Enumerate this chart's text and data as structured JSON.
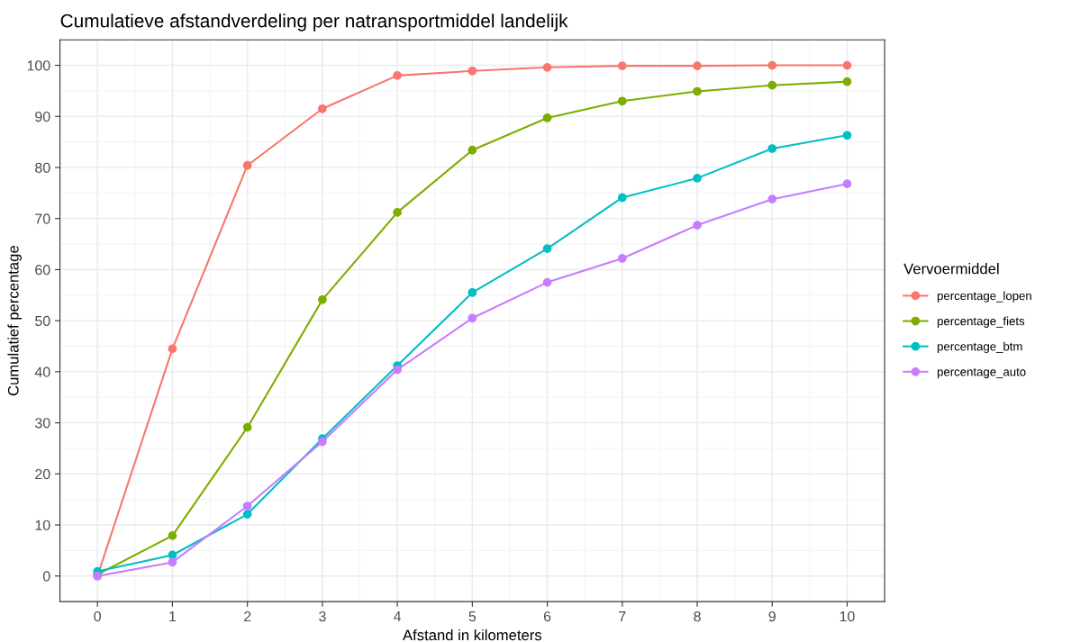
{
  "chart_data": {
    "type": "line",
    "title": "Cumulatieve afstandverdeling per natransportmiddel landelijk",
    "xlabel": "Afstand in kilometers",
    "ylabel": "Cumulatief percentage",
    "legend_title": "Vervoermiddel",
    "x": [
      0,
      1,
      2,
      3,
      4,
      5,
      6,
      7,
      8,
      9,
      10
    ],
    "series": [
      {
        "name": "percentage_lopen",
        "color": "#f8766d",
        "values": [
          0,
          44.5,
          80.4,
          91.5,
          98,
          98.9,
          99.6,
          99.9,
          99.9,
          100,
          100
        ]
      },
      {
        "name": "percentage_fiets",
        "color": "#7cae00",
        "values": [
          0.3,
          7.9,
          29.1,
          54.1,
          71.2,
          83.4,
          89.7,
          93,
          94.9,
          96.1,
          96.8
        ]
      },
      {
        "name": "percentage_btm",
        "color": "#00bfc4",
        "values": [
          0.9,
          4.1,
          12.1,
          26.9,
          41.2,
          55.5,
          64.1,
          74.1,
          77.9,
          83.7,
          86.3
        ]
      },
      {
        "name": "percentage_auto",
        "color": "#c77cff",
        "values": [
          0,
          2.7,
          13.7,
          26.3,
          40.4,
          50.5,
          57.5,
          62.2,
          68.7,
          73.8,
          76.8
        ]
      }
    ],
    "xlim": [
      -0.5,
      10.5
    ],
    "xticks": [
      0,
      1,
      2,
      3,
      4,
      5,
      6,
      7,
      8,
      9,
      10
    ],
    "ylim": [
      -5,
      105
    ],
    "yticks": [
      0,
      10,
      20,
      30,
      40,
      50,
      60,
      70,
      80,
      90,
      100
    ],
    "grid": true,
    "legend": "right",
    "marker": "circle",
    "line_style": "solid"
  }
}
